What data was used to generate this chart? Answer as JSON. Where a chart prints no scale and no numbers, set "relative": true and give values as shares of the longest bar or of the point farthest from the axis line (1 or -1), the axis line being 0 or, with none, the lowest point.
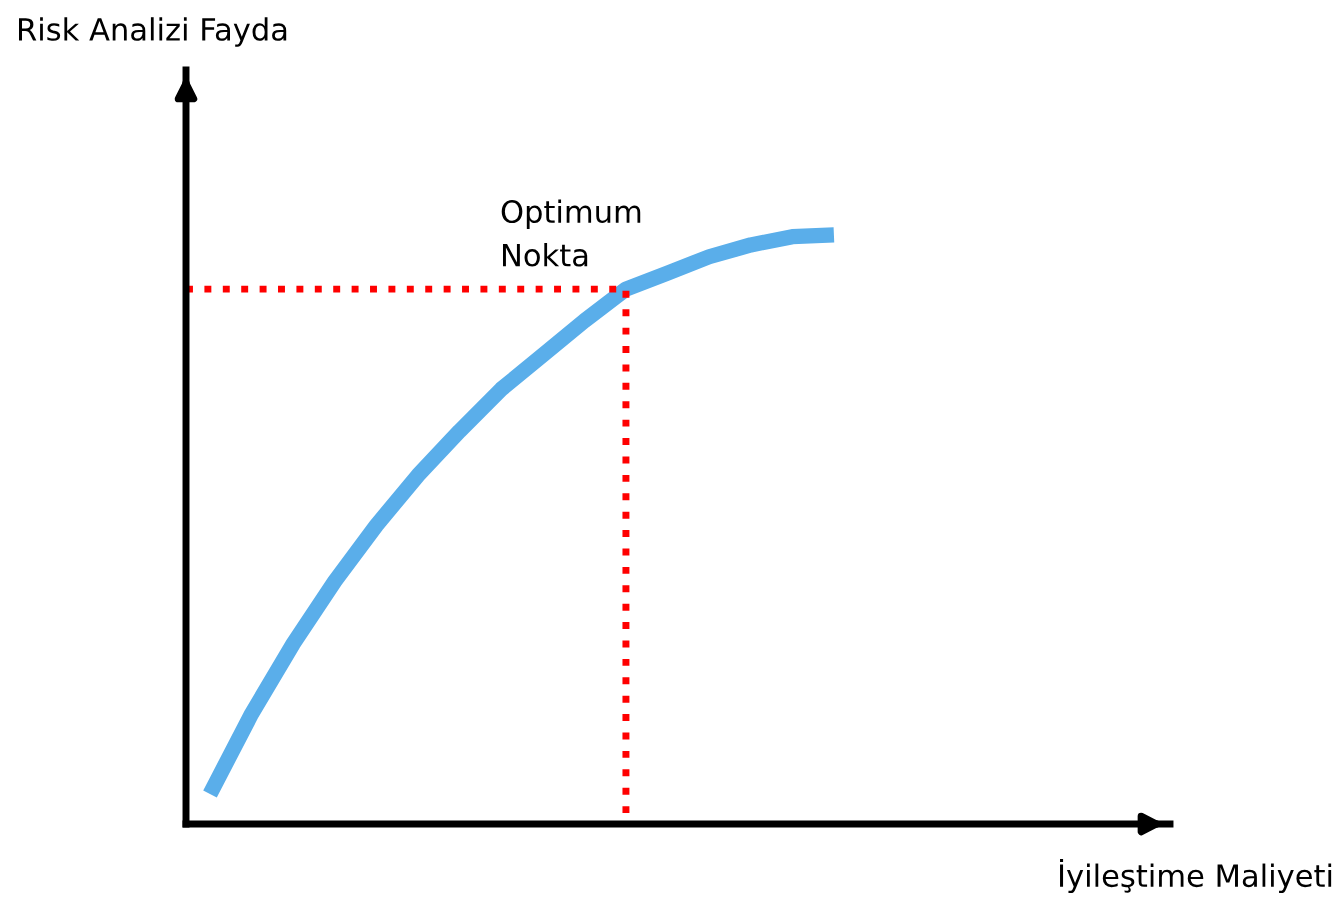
{
  "chart_data": {
    "type": "line",
    "relative": true,
    "categories": [
      null,
      null,
      null,
      null,
      null,
      null,
      null,
      null,
      null,
      null,
      null,
      null,
      null,
      null,
      null,
      null
    ],
    "series": [
      {
        "color": "#5aaeea",
        "values": [
          0.051,
          0.187,
          0.306,
          0.412,
          0.507,
          0.592,
          0.667,
          0.738,
          0.796,
          0.854,
          0.908,
          0.935,
          0.963,
          0.983,
          0.997,
          1
        ]
      }
    ],
    "ref_lines": [
      {
        "axis": "y",
        "value": 0.908,
        "color": "#ff0000",
        "line_style": "dotted"
      }
    ],
    "annotations": [
      "Optimum\nNokta",
      "Risk Analizi Fayda",
      "İyileştime Maliyeti"
    ],
    "marker": "none",
    "line_style": "solid"
  }
}
